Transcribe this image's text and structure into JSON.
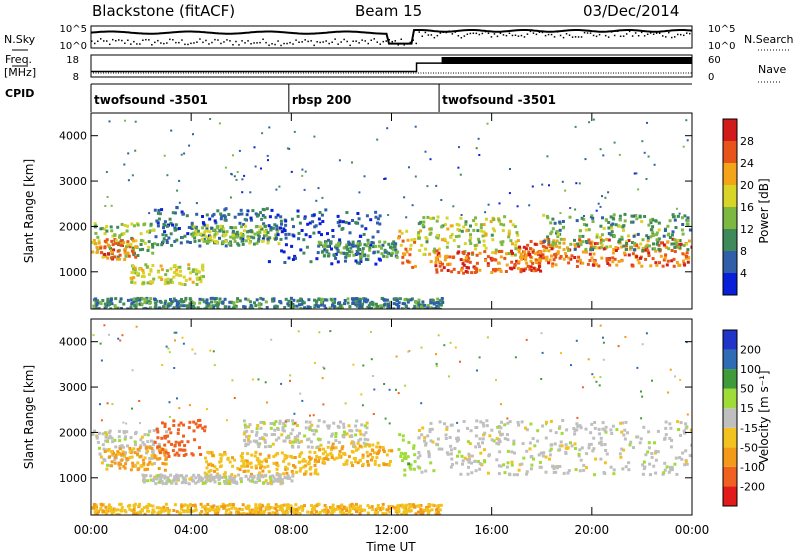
{
  "header": {
    "station": "Blackstone (fitACF)",
    "beam": "Beam 15",
    "date": "03/Dec/2014"
  },
  "left_labels": {
    "nsky": "N.Sky",
    "freq_line1": "Freq.",
    "freq_line2": "[MHz]",
    "cpid": "CPID"
  },
  "right_labels": {
    "nsearch": "N.Search",
    "nave": "Nave"
  },
  "noise_panel": {
    "left_ticks": [
      "10^5",
      "10^0"
    ],
    "right_ticks": [
      "10^5",
      "10^0"
    ]
  },
  "freq_panel": {
    "left_ticks": [
      "18",
      "8"
    ],
    "right_ticks": [
      "60",
      "0"
    ],
    "freq_steps": [
      {
        "t": 0,
        "mhz": 10.5
      },
      {
        "t": 13.0,
        "mhz": 14.3
      },
      {
        "t": 24,
        "mhz": 14.3
      }
    ],
    "nave_level": 60
  },
  "cpid_segments": [
    {
      "label": "twofsound -3501",
      "start_hour": 0.0,
      "end_hour": 7.9
    },
    {
      "label": "rbsp 200",
      "start_hour": 7.9,
      "end_hour": 13.9
    },
    {
      "label": "twofsound -3501",
      "start_hour": 13.9,
      "end_hour": 24.0
    }
  ],
  "x_axis": {
    "label": "Time UT",
    "range": [
      0,
      24
    ],
    "ticks": [
      "00:00",
      "04:00",
      "08:00",
      "12:00",
      "16:00",
      "20:00",
      "00:00"
    ]
  },
  "colors": {
    "power_scale": [
      "#0a1fd8",
      "#2f5fa8",
      "#3f8a5a",
      "#7cb842",
      "#d9d428",
      "#f3a418",
      "#e8531a",
      "#d11b1b"
    ],
    "velocity_scale": [
      "#e21a1a",
      "#f06020",
      "#f49a1a",
      "#f2c21e",
      "#bfbfbf",
      "#9fdc38",
      "#3f9a3a",
      "#2f6cb6",
      "#2035c8"
    ],
    "ground_scatter": "#bfbfbf"
  },
  "chart_data": [
    {
      "type": "heatmap",
      "title": "",
      "xlabel": "Time UT",
      "ylabel": "Slant Range [km]",
      "x_range_hours": [
        0,
        24
      ],
      "ylim": [
        180,
        4500
      ],
      "y_ticks": [
        "1000",
        "2000",
        "3000",
        "4000"
      ],
      "colorbar": {
        "label": "Power [dB]",
        "range": [
          0,
          32
        ],
        "ticks": [
          "4",
          "8",
          "12",
          "16",
          "20",
          "24",
          "28"
        ]
      },
      "bands": [
        {
          "t0": 0.0,
          "t1": 2.5,
          "r0": 1350,
          "r1": 2100,
          "level_db": 14
        },
        {
          "t0": 0.0,
          "t1": 1.8,
          "r0": 1300,
          "r1": 1750,
          "level_db": 24
        },
        {
          "t0": 1.5,
          "t1": 4.5,
          "r0": 750,
          "r1": 1200,
          "level_db": 17
        },
        {
          "t0": 2.5,
          "t1": 7.0,
          "r0": 1600,
          "r1": 2450,
          "level_db": 7
        },
        {
          "t0": 4.0,
          "t1": 7.5,
          "r0": 1650,
          "r1": 2050,
          "level_db": 15
        },
        {
          "t0": 7.0,
          "t1": 11.5,
          "r0": 1200,
          "r1": 2400,
          "level_db": 5
        },
        {
          "t0": 9.0,
          "t1": 12.2,
          "r0": 1350,
          "r1": 1700,
          "level_db": 10
        },
        {
          "t0": 12.2,
          "t1": 12.9,
          "r0": 1100,
          "r1": 2000,
          "level_db": 22
        },
        {
          "t0": 13.0,
          "t1": 17.0,
          "r0": 1400,
          "r1": 2250,
          "level_db": 16
        },
        {
          "t0": 13.5,
          "t1": 18.0,
          "r0": 1000,
          "r1": 1500,
          "level_db": 26
        },
        {
          "t0": 17.0,
          "t1": 24.0,
          "r0": 1150,
          "r1": 1750,
          "level_db": 25
        },
        {
          "t0": 18.0,
          "t1": 24.0,
          "r0": 1500,
          "r1": 2300,
          "level_db": 12
        },
        {
          "t0": 0.0,
          "t1": 14.0,
          "r0": 200,
          "r1": 450,
          "level_db": 9
        }
      ]
    },
    {
      "type": "heatmap",
      "title": "",
      "xlabel": "Time UT",
      "ylabel": "Slant Range [km]",
      "x_range_hours": [
        0,
        24
      ],
      "ylim": [
        180,
        4500
      ],
      "y_ticks": [
        "1000",
        "2000",
        "3000",
        "4000"
      ],
      "colorbar": {
        "label": "Velocity [m s⁻¹]",
        "range": [
          -250,
          250
        ],
        "ticks": [
          "200",
          "100",
          "50",
          "15",
          "-15",
          "-50",
          "-100",
          "-200"
        ]
      },
      "bands": [
        {
          "t0": 0.0,
          "t1": 3.0,
          "r0": 1300,
          "r1": 2100,
          "velocity": 0
        },
        {
          "t0": 0.5,
          "t1": 3.0,
          "r0": 1200,
          "r1": 1700,
          "velocity": -60
        },
        {
          "t0": 2.5,
          "t1": 4.5,
          "r0": 1500,
          "r1": 2300,
          "velocity": -120
        },
        {
          "t0": 4.5,
          "t1": 9.0,
          "r0": 1100,
          "r1": 1600,
          "velocity": -40
        },
        {
          "t0": 6.0,
          "t1": 11.0,
          "r0": 1700,
          "r1": 2300,
          "velocity": 0
        },
        {
          "t0": 9.0,
          "t1": 12.0,
          "r0": 1300,
          "r1": 1800,
          "velocity": -45
        },
        {
          "t0": 2.0,
          "t1": 8.0,
          "r0": 900,
          "r1": 1100,
          "velocity": 0
        },
        {
          "t0": 12.2,
          "t1": 12.9,
          "r0": 1000,
          "r1": 2000,
          "velocity": 35
        },
        {
          "t0": 13.0,
          "t1": 24.0,
          "r0": 1100,
          "r1": 2300,
          "velocity": 0
        },
        {
          "t0": 0.0,
          "t1": 14.0,
          "r0": 220,
          "r1": 450,
          "velocity": -40
        }
      ]
    }
  ]
}
